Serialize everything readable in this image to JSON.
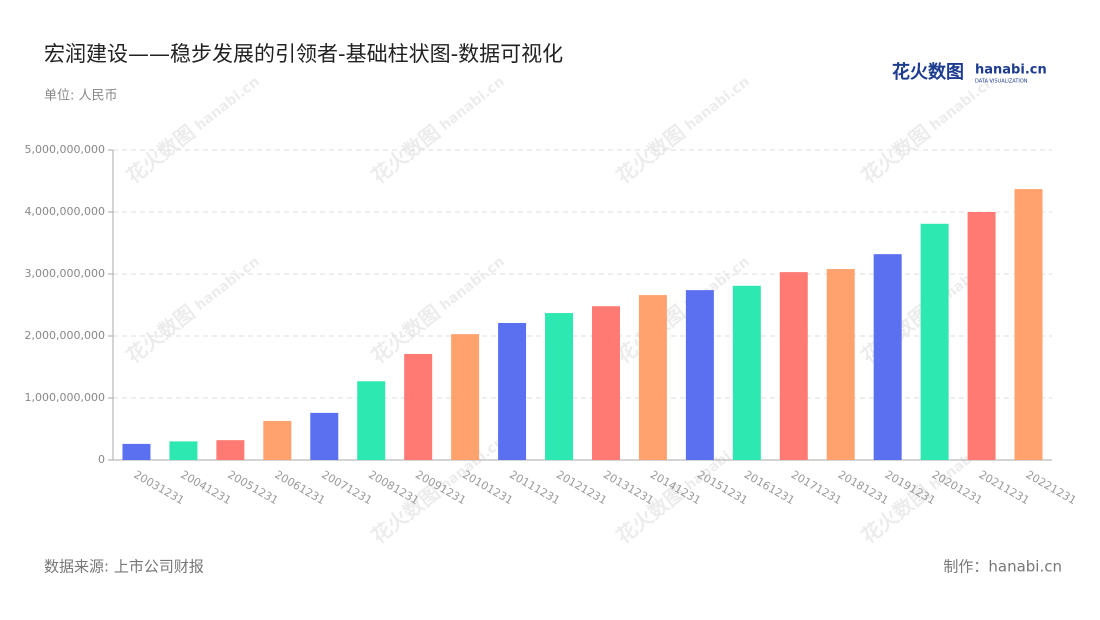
{
  "chart_data": {
    "type": "bar",
    "title": "宏润建设——稳步发展的引领者-基础柱状图-数据可视化",
    "subtitle": "单位: 人民币",
    "source": "数据来源: 上市公司财报",
    "credit": "制作：hanabi.cn",
    "logo": {
      "brand": "花火数图",
      "site": "hanabi.cn",
      "tagline": "DATA VISUALIZATION"
    },
    "categories": [
      "20031231",
      "20041231",
      "20051231",
      "20061231",
      "20071231",
      "20081231",
      "20091231",
      "20101231",
      "20111231",
      "20121231",
      "20131231",
      "20141231",
      "20151231",
      "20161231",
      "20171231",
      "20181231",
      "20191231",
      "20201231",
      "20211231",
      "20221231"
    ],
    "values": [
      260000000,
      300000000,
      320000000,
      630000000,
      760000000,
      1270000000,
      1710000000,
      2030000000,
      2210000000,
      2370000000,
      2480000000,
      2660000000,
      2740000000,
      2810000000,
      3030000000,
      3080000000,
      3320000000,
      3810000000,
      4000000000,
      4370000000
    ],
    "colors": [
      "#5b70f0",
      "#2de8b0",
      "#ff7a73",
      "#ffa26e",
      "#5b70f0",
      "#2de8b0",
      "#ff7a73",
      "#ffa26e",
      "#5b70f0",
      "#2de8b0",
      "#ff7a73",
      "#ffa26e",
      "#5b70f0",
      "#2de8b0",
      "#ff7a73",
      "#ffa26e",
      "#5b70f0",
      "#2de8b0",
      "#ff7a73",
      "#ffa26e"
    ],
    "ylim": [
      0,
      5000000000
    ],
    "yticks": [
      0,
      {
        "value": 1000000000,
        "label": "1,000,000,000"
      },
      {
        "value": 2000000000,
        "label": "2,000,000,000"
      },
      {
        "value": 3000000000,
        "label": "3,000,000,000"
      },
      {
        "value": 4000000000,
        "label": "4,000,000,000"
      },
      {
        "value": 5000000000,
        "label": "5,000,000,000"
      }
    ],
    "grid": true
  }
}
